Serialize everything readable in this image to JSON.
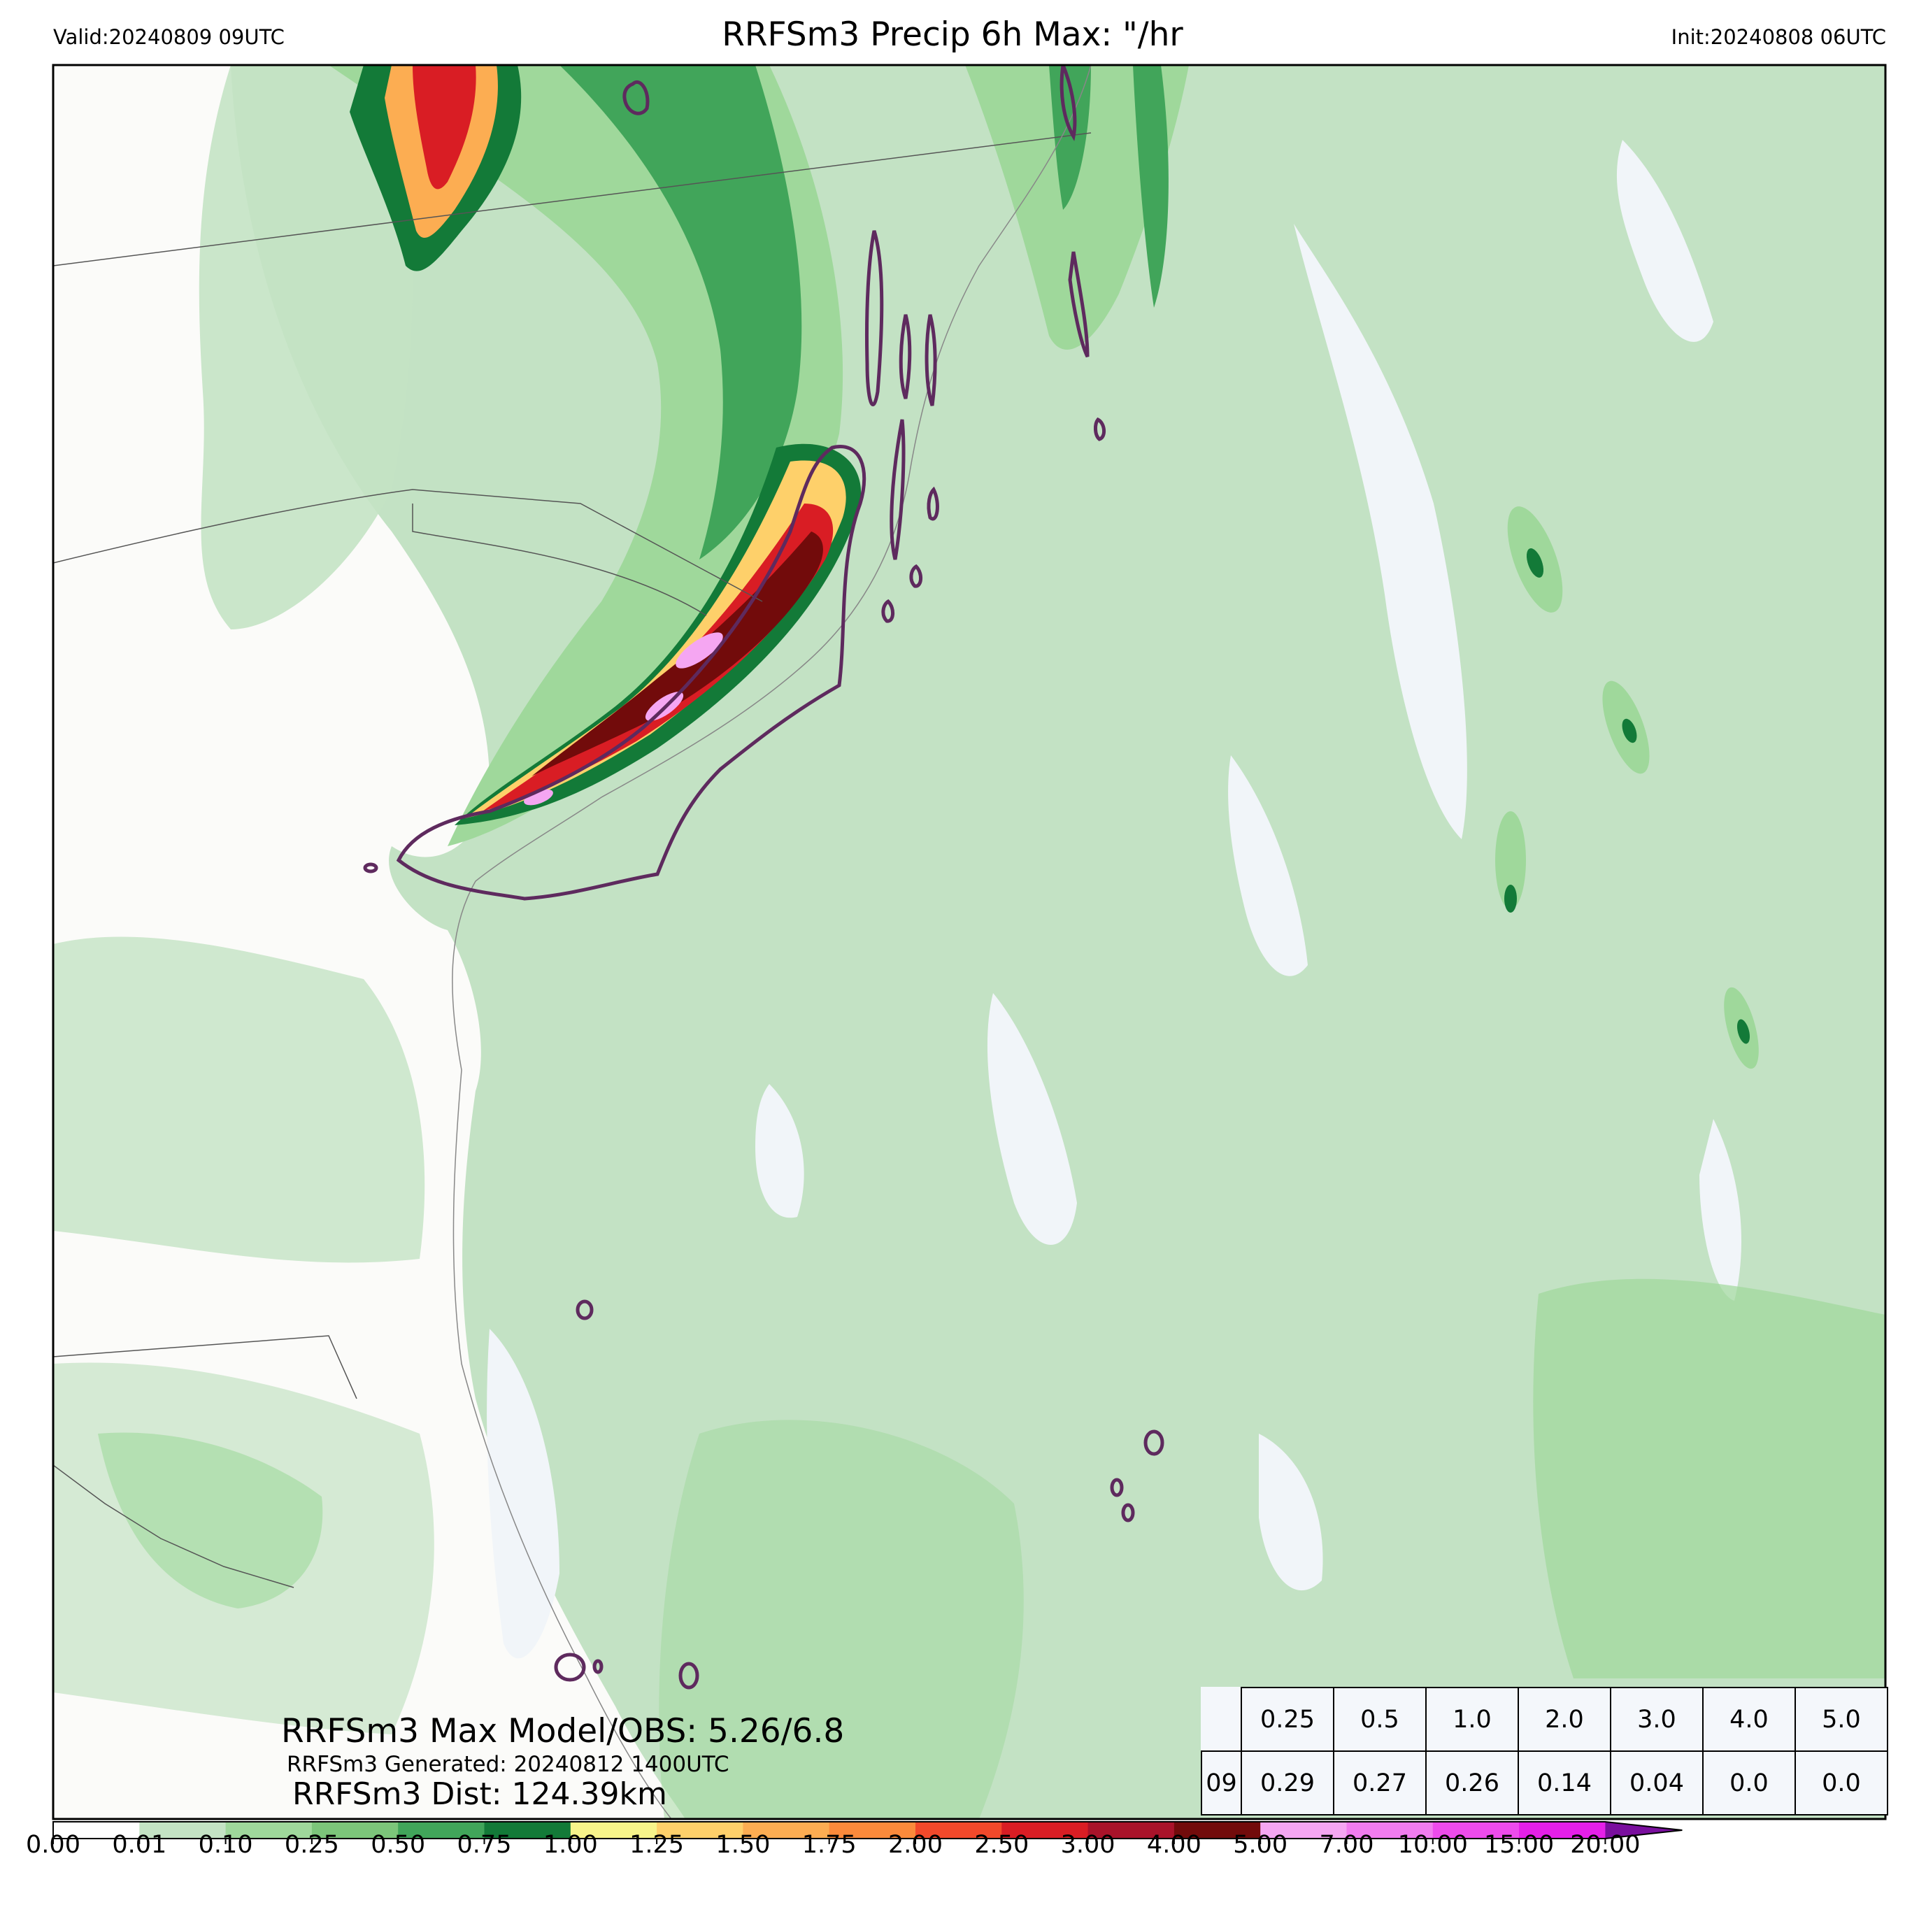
{
  "header": {
    "valid": "Valid:20240809 09UTC",
    "title": "RRFSm3 Precip 6h Max: \"/hr",
    "init": "Init:20240808 06UTC"
  },
  "annotations": {
    "max_model_obs": "RRFSm3 Max Model/OBS: 5.26/6.8",
    "generated": "RRFSm3 Generated: 20240812 1400UTC",
    "distance": "RRFSm3 Dist: 124.39km"
  },
  "stats_table": {
    "thresholds": [
      "0.25",
      "0.5",
      "1.0",
      "2.0",
      "3.0",
      "4.0",
      "5.0"
    ],
    "row_label": "09",
    "values": [
      "0.29",
      "0.27",
      "0.26",
      "0.14",
      "0.04",
      "0.0",
      "0.0"
    ]
  },
  "colorbar": {
    "labels": [
      "0.00",
      "0.01",
      "0.10",
      "0.25",
      "0.50",
      "0.75",
      "1.00",
      "1.25",
      "1.50",
      "1.75",
      "2.00",
      "2.50",
      "3.00",
      "4.00",
      "5.00",
      "7.00",
      "10.00",
      "15.00",
      "20.00"
    ],
    "colors": [
      "#ffffff",
      "#c4e3c4",
      "#9fd89b",
      "#7cc57a",
      "#41a55a",
      "#137a38",
      "#f7f48a",
      "#fed06a",
      "#fcad52",
      "#fb8a3b",
      "#f2492b",
      "#d91d24",
      "#a9132a",
      "#720b0b",
      "#f5a6f2",
      "#f17cef",
      "#ee4bec",
      "#e51fe8",
      "#9e10c7"
    ],
    "extend_color": "#7a0f9e"
  },
  "map_colors": {
    "ocean": "#c3e2c4",
    "land": "#fbfbf9",
    "ocean_gap": "#f1f5f9",
    "obs_contour": "#5e2a5e",
    "border": "#555555"
  }
}
